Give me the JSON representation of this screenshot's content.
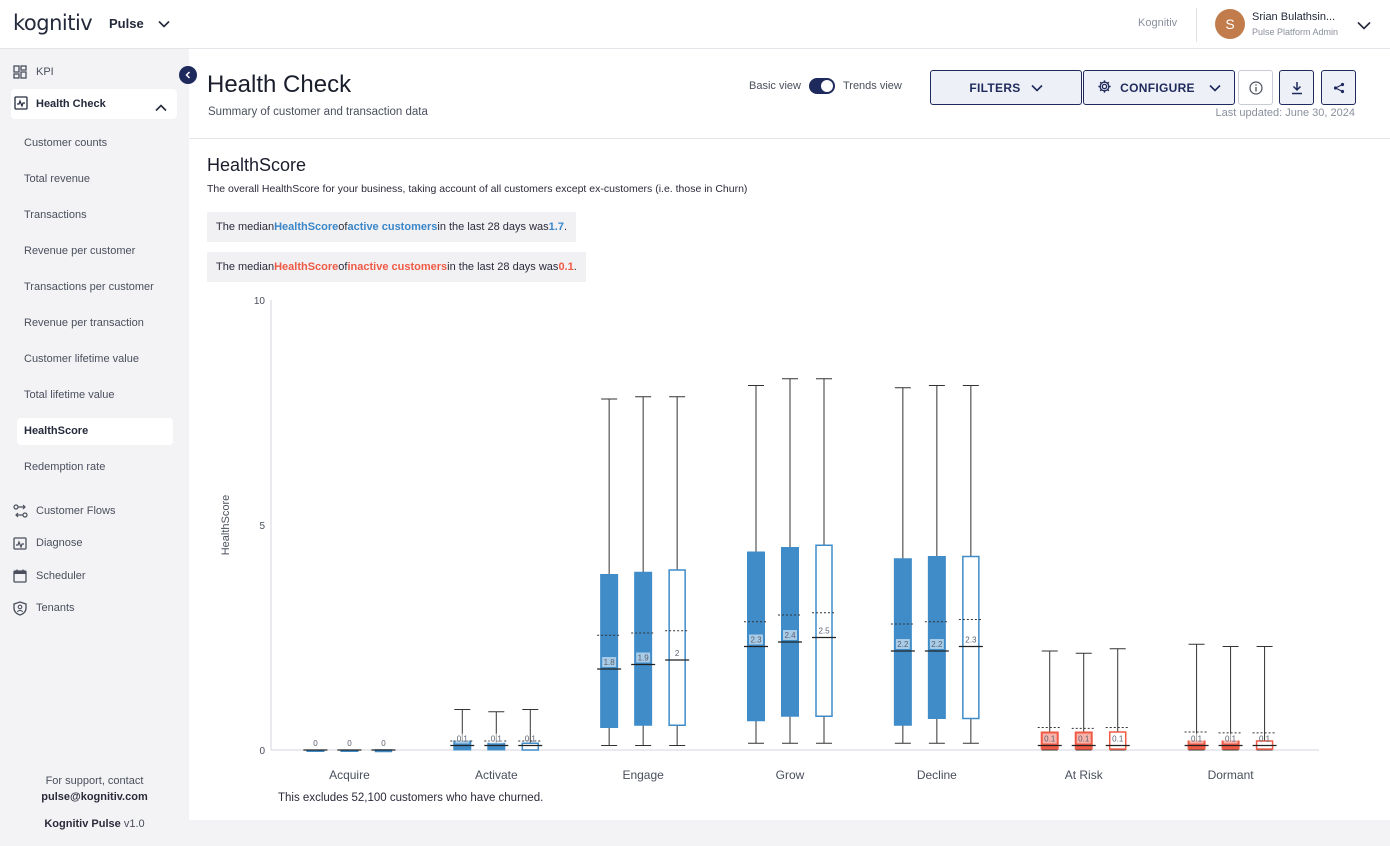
{
  "topbar": {
    "logo_text": "kognitiv",
    "app_name": "Pulse",
    "tenant": "Kognitiv",
    "avatar_initial": "S",
    "user_name": "Srian Bulathsin...",
    "user_role": "Pulse Platform Admin"
  },
  "sidebar": {
    "kpi": "KPI",
    "health_check": "Health Check",
    "sub_items": [
      "Customer counts",
      "Total revenue",
      "Transactions",
      "Revenue per customer",
      "Transactions per customer",
      "Revenue per transaction",
      "Customer lifetime value",
      "Total lifetime value",
      "HealthScore",
      "Redemption rate"
    ],
    "active_sub": "HealthScore",
    "customer_flows": "Customer Flows",
    "diagnose": "Diagnose",
    "scheduler": "Scheduler",
    "tenants": "Tenants",
    "support_line1": "For support, contact",
    "support_email": "pulse@kognitiv.com",
    "product_name": "Kognitiv Pulse",
    "version": "v1.0"
  },
  "header": {
    "title": "Health Check",
    "subtitle": "Summary of customer and transaction data",
    "basic_view": "Basic view",
    "trends_view": "Trends view",
    "filters": "FILTERS",
    "configure": "CONFIGURE",
    "last_updated": "Last updated: June 30, 2024"
  },
  "section": {
    "title": "HealthScore",
    "description": "The overall HealthScore for your business, taking account of all customers except ex-customers (i.e. those in Churn)",
    "active_callout": {
      "pre": "The median ",
      "metric": "HealthScore",
      "mid": " of ",
      "group": "active customers",
      "post": " in the last 28 days was ",
      "value": "1.7",
      "end": "."
    },
    "inactive_callout": {
      "pre": "The median ",
      "metric": "HealthScore",
      "mid": " of ",
      "group": "inactive customers",
      "post": " in the last 28 days was ",
      "value": "0.1",
      "end": "."
    },
    "footnote": "This excludes 52,100 customers who have churned."
  },
  "colors": {
    "active": "#3f8cc9",
    "inactive": "#ef5a45",
    "brand_navy": "#1f2a5c"
  },
  "chart_data": {
    "type": "boxplot",
    "ylabel": "HealthScore",
    "ylim": [
      0,
      10
    ],
    "yticks": [
      0,
      5,
      10
    ],
    "categories": [
      "Acquire",
      "Activate",
      "Engage",
      "Grow",
      "Decline",
      "At Risk",
      "Dormant"
    ],
    "boxes": [
      {
        "category": "Acquire",
        "min": 0,
        "q1": 0,
        "median": 0,
        "mean": 0,
        "q3": 0,
        "max": 0,
        "label": "0",
        "style": "filled",
        "group": "active"
      },
      {
        "category": "Acquire",
        "min": 0,
        "q1": 0,
        "median": 0,
        "mean": 0,
        "q3": 0,
        "max": 0,
        "label": "0",
        "style": "filled",
        "group": "active"
      },
      {
        "category": "Acquire",
        "min": 0,
        "q1": 0,
        "median": 0,
        "mean": 0,
        "q3": 0,
        "max": 0,
        "label": "0",
        "style": "outline",
        "group": "active"
      },
      {
        "category": "Activate",
        "min": 0,
        "q1": 0,
        "median": 0.1,
        "mean": 0.2,
        "q3": 0.2,
        "max": 0.9,
        "label": "0.1",
        "style": "filled",
        "group": "active"
      },
      {
        "category": "Activate",
        "min": 0,
        "q1": 0,
        "median": 0.1,
        "mean": 0.2,
        "q3": 0.15,
        "max": 0.85,
        "label": "0.1",
        "style": "filled",
        "group": "active"
      },
      {
        "category": "Activate",
        "min": 0,
        "q1": 0,
        "median": 0.1,
        "mean": 0.2,
        "q3": 0.15,
        "max": 0.9,
        "label": "0.1",
        "style": "outline",
        "group": "active"
      },
      {
        "category": "Engage",
        "min": 0.1,
        "q1": 0.5,
        "median": 1.8,
        "mean": 2.55,
        "q3": 3.9,
        "max": 7.8,
        "label": "1.8",
        "style": "filled",
        "group": "active"
      },
      {
        "category": "Engage",
        "min": 0.1,
        "q1": 0.55,
        "median": 1.9,
        "mean": 2.6,
        "q3": 3.95,
        "max": 7.85,
        "label": "1.9",
        "style": "filled",
        "group": "active"
      },
      {
        "category": "Engage",
        "min": 0.1,
        "q1": 0.55,
        "median": 2,
        "mean": 2.65,
        "q3": 4.0,
        "max": 7.85,
        "label": "2",
        "style": "outline",
        "group": "active"
      },
      {
        "category": "Grow",
        "min": 0.15,
        "q1": 0.65,
        "median": 2.3,
        "mean": 2.85,
        "q3": 4.4,
        "max": 8.1,
        "label": "2.3",
        "style": "filled",
        "group": "active"
      },
      {
        "category": "Grow",
        "min": 0.15,
        "q1": 0.75,
        "median": 2.4,
        "mean": 3.0,
        "q3": 4.5,
        "max": 8.25,
        "label": "2.4",
        "style": "filled",
        "group": "active"
      },
      {
        "category": "Grow",
        "min": 0.15,
        "q1": 0.75,
        "median": 2.5,
        "mean": 3.05,
        "q3": 4.55,
        "max": 8.25,
        "label": "2.5",
        "style": "outline",
        "group": "active"
      },
      {
        "category": "Decline",
        "min": 0.15,
        "q1": 0.55,
        "median": 2.2,
        "mean": 2.8,
        "q3": 4.25,
        "max": 8.05,
        "label": "2.2",
        "style": "filled",
        "group": "active"
      },
      {
        "category": "Decline",
        "min": 0.15,
        "q1": 0.7,
        "median": 2.2,
        "mean": 2.85,
        "q3": 4.3,
        "max": 8.1,
        "label": "2.2",
        "style": "filled",
        "group": "active"
      },
      {
        "category": "Decline",
        "min": 0.15,
        "q1": 0.7,
        "median": 2.3,
        "mean": 2.9,
        "q3": 4.3,
        "max": 8.1,
        "label": "2.3",
        "style": "outline",
        "group": "active"
      },
      {
        "category": "At Risk",
        "min": 0,
        "q1": 0.02,
        "median": 0.1,
        "mean": 0.5,
        "q3": 0.4,
        "max": 2.2,
        "label": "0.1",
        "style": "filled",
        "group": "inactive"
      },
      {
        "category": "At Risk",
        "min": 0,
        "q1": 0.02,
        "median": 0.1,
        "mean": 0.48,
        "q3": 0.4,
        "max": 2.15,
        "label": "0.1",
        "style": "filled",
        "group": "inactive"
      },
      {
        "category": "At Risk",
        "min": 0,
        "q1": 0.02,
        "median": 0.1,
        "mean": 0.5,
        "q3": 0.4,
        "max": 2.25,
        "label": "0.1",
        "style": "outline",
        "group": "inactive"
      },
      {
        "category": "Dormant",
        "min": 0,
        "q1": 0.02,
        "median": 0.1,
        "mean": 0.4,
        "q3": 0.2,
        "max": 2.35,
        "label": "0.1",
        "style": "filled",
        "group": "inactive"
      },
      {
        "category": "Dormant",
        "min": 0,
        "q1": 0.02,
        "median": 0.1,
        "mean": 0.38,
        "q3": 0.2,
        "max": 2.3,
        "label": "0.1",
        "style": "filled",
        "group": "inactive"
      },
      {
        "category": "Dormant",
        "min": 0,
        "q1": 0.02,
        "median": 0.1,
        "mean": 0.38,
        "q3": 0.2,
        "max": 2.3,
        "label": "0.1",
        "style": "outline",
        "group": "inactive"
      }
    ]
  }
}
